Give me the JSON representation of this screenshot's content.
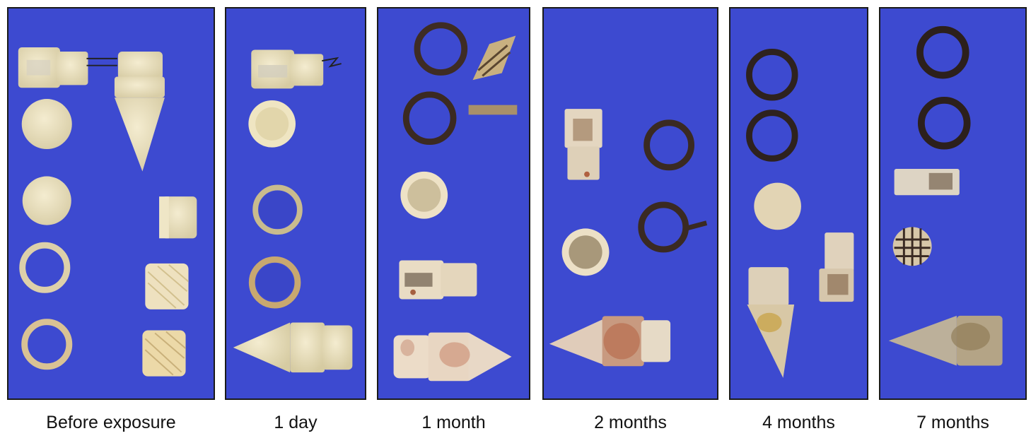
{
  "panels": [
    {
      "label": "Before exposure"
    },
    {
      "label": "1 day"
    },
    {
      "label": "1 month"
    },
    {
      "label": "2 months"
    },
    {
      "label": "4 months"
    },
    {
      "label": "7 months"
    }
  ],
  "colors": {
    "background": "#3d4ad0",
    "fresh_part": "#ece2bf",
    "aged_part": "#dcd2b4",
    "corroded_ring": "#3a2a25",
    "rust": "#b07050"
  }
}
